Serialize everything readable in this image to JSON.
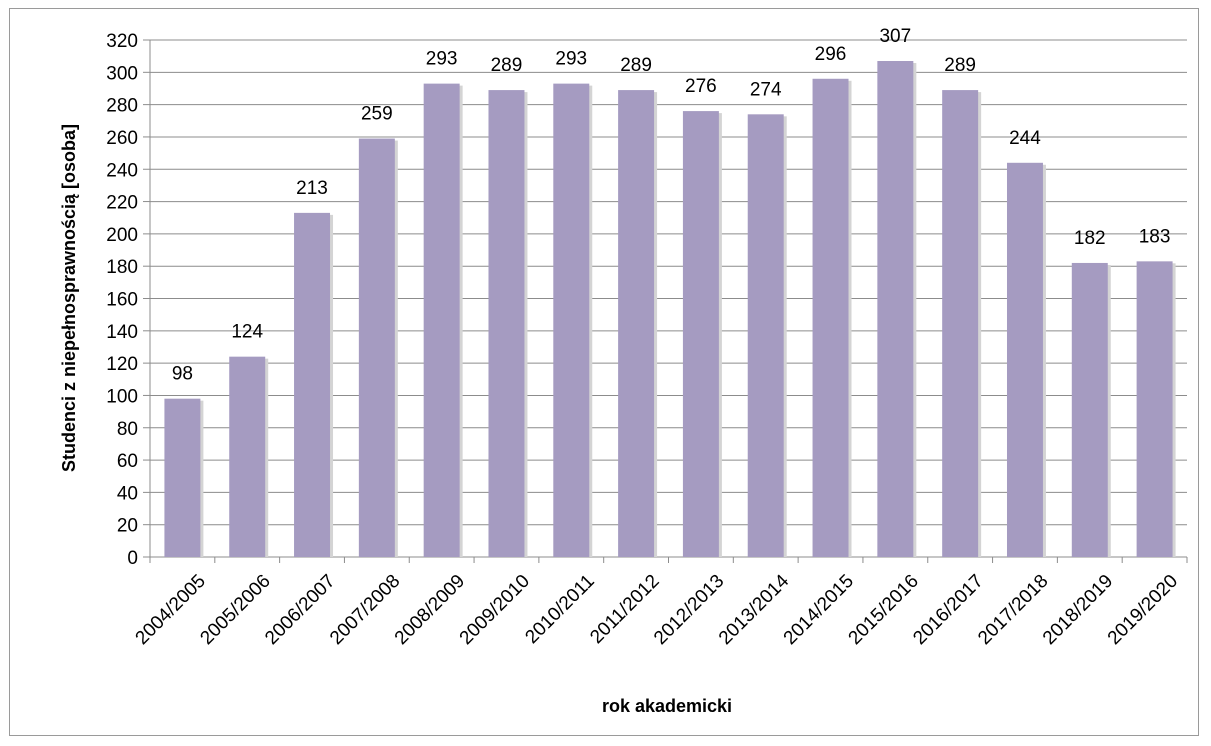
{
  "chart_data": {
    "type": "bar",
    "title": "",
    "xlabel": "rok akademicki",
    "ylabel": "Studenci z niepełnosprawnością  [osoba]",
    "ylim": [
      0,
      320
    ],
    "ytick_step": 20,
    "grid": true,
    "legend": "none",
    "bar_color": "#a59bc1",
    "categories": [
      "2004/2005",
      "2005/2006",
      "2006/2007",
      "2007/2008",
      "2008/2009",
      "2009/2010",
      "2010/2011",
      "2011/2012",
      "2012/2013",
      "2013/2014",
      "2014/2015",
      "2015/2016",
      "2016/2017",
      "2017/2018",
      "2018/2019",
      "2019/2020"
    ],
    "values": [
      98,
      124,
      213,
      259,
      293,
      289,
      293,
      289,
      276,
      274,
      296,
      307,
      289,
      244,
      182,
      183
    ]
  }
}
